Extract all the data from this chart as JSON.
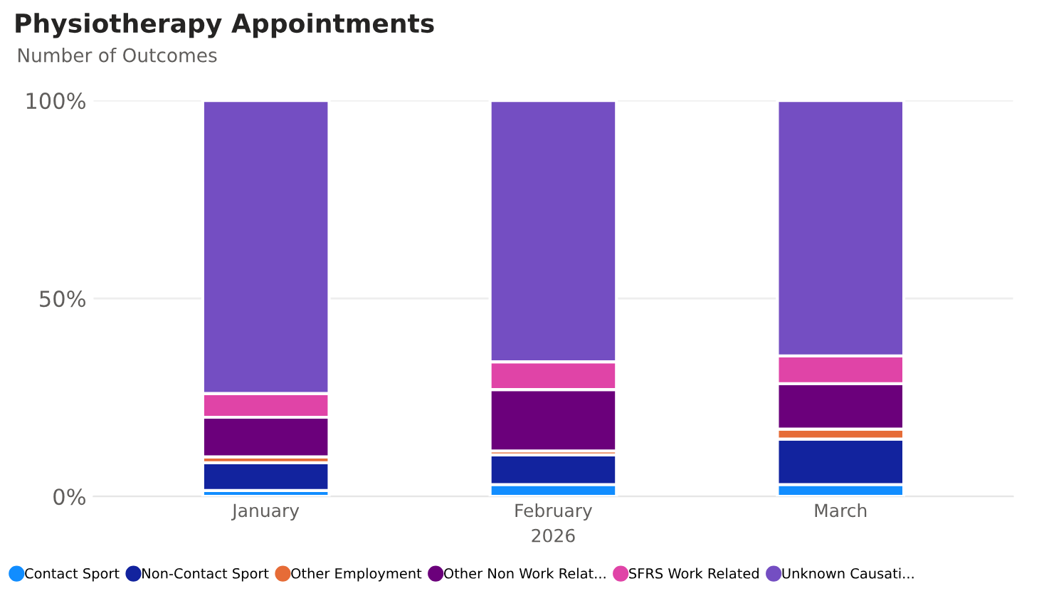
{
  "chart_data": {
    "type": "bar",
    "stacked": true,
    "title": "Physiotherapy Appointments",
    "subtitle": "Number of Outcomes",
    "xlabel": "2026",
    "categories": [
      "January",
      "February",
      "March"
    ],
    "series": [
      {
        "name": "Contact Sport",
        "color": "#118dff",
        "values": [
          1.5,
          3,
          3
        ]
      },
      {
        "name": "Non-Contact Sport",
        "color": "#12239e",
        "values": [
          7,
          7.5,
          11.5
        ]
      },
      {
        "name": "Other Employment",
        "color": "#e66c37",
        "values": [
          1.5,
          1,
          2.5
        ]
      },
      {
        "name": "Other Non Work Relat...",
        "color": "#6b007b",
        "values": [
          10,
          15.5,
          11.5
        ]
      },
      {
        "name": "SFRS Work Related",
        "color": "#e044a7",
        "values": [
          6,
          7,
          7
        ]
      },
      {
        "name": "Unknown Causati...",
        "color": "#744ec2",
        "values": [
          74,
          66,
          64.5
        ]
      }
    ],
    "ylim": [
      0,
      100
    ],
    "yticks": [
      {
        "value": 0,
        "label": "0%"
      },
      {
        "value": 50,
        "label": "50%"
      },
      {
        "value": 100,
        "label": "100%"
      }
    ],
    "grid": "y",
    "legend": "bottom"
  }
}
